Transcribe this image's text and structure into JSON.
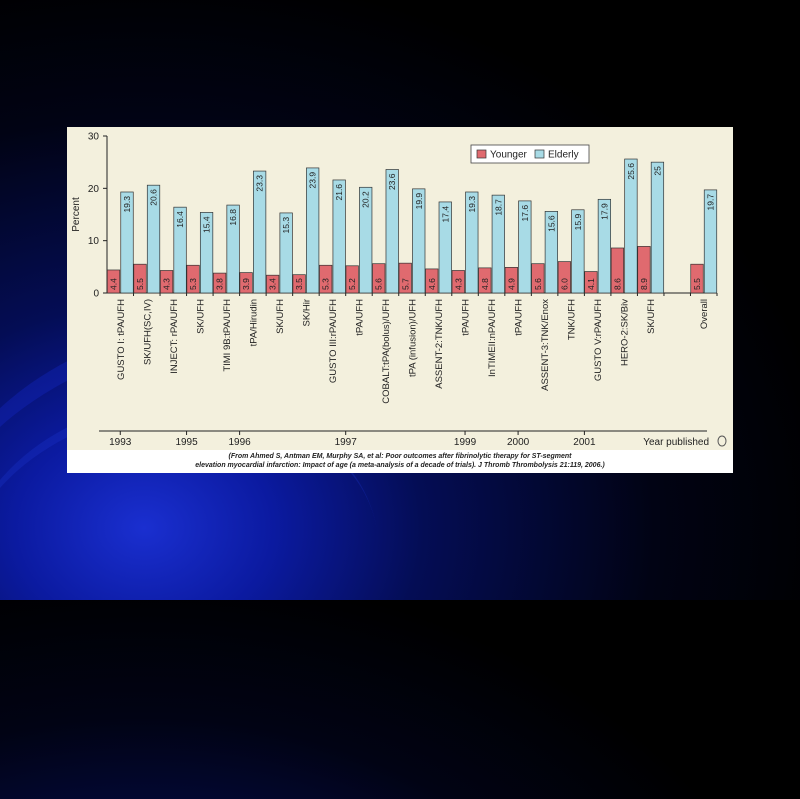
{
  "chart_data": {
    "type": "bar",
    "categories": [
      "GUSTO I: tPA/UFH",
      "SK/UFH(SC,IV)",
      "INJECT: rPA/UFH",
      "SK/UFH",
      "TIMI 9B:tPA/UFH",
      "tPA/Hirudin",
      "SK/UFH",
      "SK/Hir",
      "GUSTO III:rPA/UFH",
      "tPA/UFH",
      "COBALT:tPA(bolus)/UFH",
      "tPA (infusion)/UFH",
      "ASSENT-2:TNK/UFH",
      "tPA/UFH",
      "InTIMEII:nPA/UFH",
      "tPA/UFH",
      "ASSENT-3:TNK/Enox",
      "TNK/UFH",
      "GUSTO V:rPA/UFH",
      "HERO-2:SK/Biv",
      "SK/UFH",
      "",
      "Overall"
    ],
    "series": [
      {
        "name": "Younger",
        "color": "#e06a6f",
        "values": [
          4.4,
          5.5,
          4.3,
          5.3,
          3.8,
          3.9,
          3.4,
          3.5,
          5.3,
          5.2,
          5.6,
          5.7,
          4.6,
          4.3,
          4.8,
          4.9,
          5.6,
          6.0,
          4.1,
          8.6,
          8.9,
          null,
          5.5
        ],
        "labels": [
          "4.4",
          "5.5",
          "4.3",
          "5.3",
          "3.8",
          "3.9",
          "3.4",
          "3.5",
          "5.3",
          "5.2",
          "5.6",
          "5.7",
          "4.6",
          "4.3",
          "4.8",
          "4.9",
          "5.6",
          "6.0",
          "4.1",
          "8.6",
          "8.9",
          "",
          "5.5"
        ]
      },
      {
        "name": "Elderly",
        "color": "#a8dbe6",
        "values": [
          19.3,
          20.6,
          16.4,
          15.4,
          16.8,
          23.3,
          15.3,
          23.9,
          21.6,
          20.2,
          23.6,
          19.9,
          17.4,
          19.3,
          18.7,
          17.6,
          15.6,
          15.9,
          17.9,
          25.6,
          25.0,
          null,
          19.7
        ],
        "labels": [
          "19.3",
          "20.6",
          "16.4",
          "15.4",
          "16.8",
          "23.3",
          "15.3",
          "23.9",
          "21.6",
          "20.2",
          "23.6",
          "19.9",
          "17.4",
          "19.3",
          "18.7",
          "17.6",
          "15.6",
          "15.9",
          "17.9",
          "25.6",
          "25",
          "",
          "19.7"
        ]
      }
    ],
    "ylabel": "Percent",
    "ylim": [
      0,
      30
    ],
    "yticks": [
      "0",
      "10",
      "20",
      "30"
    ],
    "legend_position": "top-right",
    "years": [
      {
        "label": "1993",
        "index": 0
      },
      {
        "label": "1995",
        "index": 2.5
      },
      {
        "label": "1996",
        "index": 4.5
      },
      {
        "label": "1997",
        "index": 8.5
      },
      {
        "label": "1999",
        "index": 13
      },
      {
        "label": "2000",
        "index": 15
      },
      {
        "label": "2001",
        "index": 17.5
      }
    ],
    "year_axis_title": "Year published"
  },
  "caption": {
    "line1": "(From Ahmed S, Antman EM, Murphy SA, et al: Poor outcomes after fibrinolytic therapy for ST-segment",
    "line2": "elevation myocardial infarction: Impact of age (a meta-analysis of a decade of trials). J Thromb Thrombolysis 21:119, 2006.)"
  }
}
